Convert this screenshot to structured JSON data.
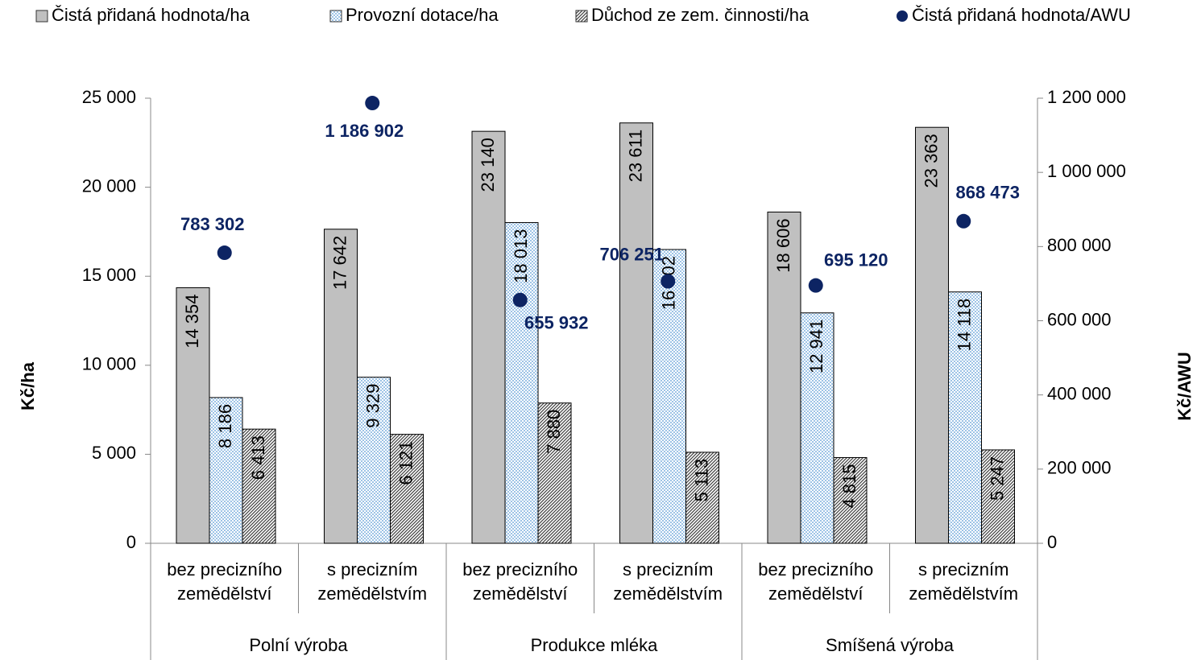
{
  "chart_data": {
    "type": "bar",
    "y_label": "Kč/ha",
    "y2_label": "Kč/AWU",
    "categories": [
      "bez precizního zemědělství",
      "s precizním zemědělstvím",
      "bez precizního zemědělství",
      "s precizním zemědělstvím",
      "bez precizního zemědělství",
      "s precizním zemědělstvím"
    ],
    "groups": [
      "Polní výroba",
      "Produkce mléka",
      "Smíšená výroba"
    ],
    "ylim": [
      0,
      25000
    ],
    "yticks": [
      0,
      {
        "value": 5000,
        "label": "5 000"
      },
      {
        "value": 10000,
        "label": "10 000"
      },
      {
        "value": 15000,
        "label": "15 000"
      },
      {
        "value": 20000,
        "label": "20 000"
      },
      {
        "value": 25000,
        "label": "25 000"
      }
    ],
    "y2lim": [
      0,
      1200000
    ],
    "y2ticks": [
      0,
      {
        "value": 200000,
        "label": "200 000"
      },
      {
        "value": 400000,
        "label": "400 000"
      },
      {
        "value": 600000,
        "label": "600 000"
      },
      {
        "value": 800000,
        "label": "800 000"
      },
      {
        "value": 1000000,
        "label": "1 000 000"
      },
      {
        "value": 1200000,
        "label": "1 200 000"
      }
    ],
    "series": [
      {
        "name": "Čistá přidaná hodnota/ha",
        "type": "bar",
        "color": "#c0c0c0",
        "values": [
          14354,
          17642,
          23140,
          23611,
          18606,
          23363
        ],
        "value_labels": [
          "14 354",
          "17 642",
          "23 140",
          "23 611",
          "18 606",
          "23 363"
        ]
      },
      {
        "name": "Provozní dotace/ha",
        "type": "bar",
        "color": "#9dc3e6",
        "values": [
          8186,
          9329,
          18013,
          16502,
          12941,
          14118
        ],
        "value_labels": [
          "8 186",
          "9 329",
          "18 013",
          "16 502",
          "12 941",
          "14 118"
        ]
      },
      {
        "name": "Důchod ze zem. činnosti/ha",
        "type": "bar",
        "color": "#404040",
        "values": [
          6413,
          6121,
          7880,
          5113,
          4815,
          5247
        ],
        "value_labels": [
          "6 413",
          "6 121",
          "7 880",
          "5 113",
          "4 815",
          "5 247"
        ]
      },
      {
        "name": "Čistá přidaná hodnota/AWU",
        "type": "scatter",
        "axis": "y2",
        "color": "#0d2463",
        "values": [
          783302,
          1186902,
          655932,
          706251,
          695120,
          868473
        ],
        "value_labels": [
          "783 302",
          "1 186 902",
          "655 932",
          "706 251",
          "695 120",
          "868 473"
        ]
      }
    ]
  }
}
